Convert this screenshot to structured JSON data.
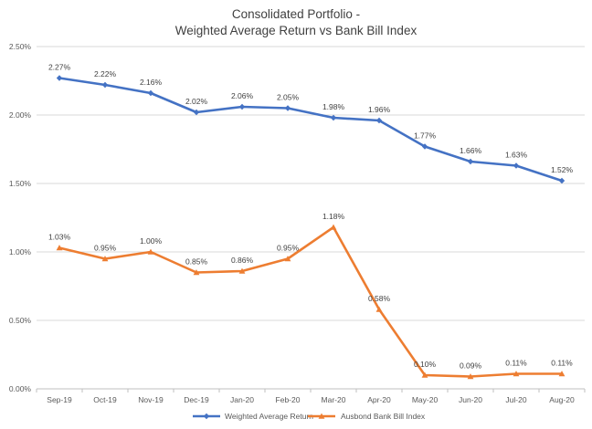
{
  "chart_data": {
    "type": "line",
    "title_line1": "Consolidated Portfolio -",
    "title_line2": "Weighted Average Return vs Bank Bill Index",
    "xlabel": "",
    "ylabel": "",
    "categories": [
      "Sep-19",
      "Oct-19",
      "Nov-19",
      "Dec-19",
      "Jan-20",
      "Feb-20",
      "Mar-20",
      "Apr-20",
      "May-20",
      "Jun-20",
      "Jul-20",
      "Aug-20"
    ],
    "ylim": [
      0,
      2.5
    ],
    "yticks": [
      0,
      0.5,
      1.0,
      1.5,
      2.0,
      2.5
    ],
    "ytick_labels": [
      "0.00%",
      "0.50%",
      "1.00%",
      "1.50%",
      "2.00%",
      "2.50%"
    ],
    "grid": "horizontal",
    "legend_position": "bottom",
    "series": [
      {
        "name": "Weighted Average Return",
        "color": "#4472C4",
        "marker": "diamond",
        "values": [
          2.27,
          2.22,
          2.16,
          2.02,
          2.06,
          2.05,
          1.98,
          1.96,
          1.77,
          1.66,
          1.63,
          1.52
        ],
        "labels": [
          "2.27%",
          "2.22%",
          "2.16%",
          "2.02%",
          "2.06%",
          "2.05%",
          "1.98%",
          "1.96%",
          "1.77%",
          "1.66%",
          "1.63%",
          "1.52%"
        ]
      },
      {
        "name": "Ausbond Bank Bill Index",
        "color": "#ED7D31",
        "marker": "triangle",
        "values": [
          1.03,
          0.95,
          1.0,
          0.85,
          0.86,
          0.95,
          1.18,
          0.58,
          0.1,
          0.09,
          0.11,
          0.11
        ],
        "labels": [
          "1.03%",
          "0.95%",
          "1.00%",
          "0.85%",
          "0.86%",
          "0.95%",
          "1.18%",
          "0.58%",
          "0.10%",
          "0.09%",
          "0.11%",
          "0.11%"
        ]
      }
    ]
  }
}
